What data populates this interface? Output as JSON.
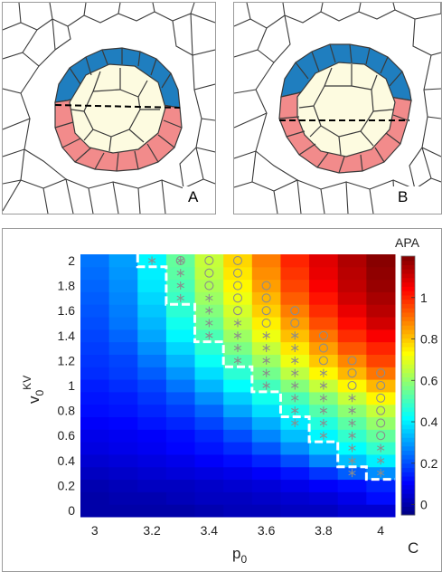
{
  "panels": {
    "a_label": "A",
    "b_label": "B",
    "c_label": "C"
  },
  "colors": {
    "top_cells": "#1f7ebf",
    "bottom_cells": "#f28b8b",
    "inner_cells": "#fdfbe0",
    "cell_edges": "#3a3a3a",
    "boundary_marker": "#ffffff",
    "marker_color": "#8c8c8c"
  },
  "chart_data": {
    "type": "heatmap",
    "title": "",
    "xlabel": "p0",
    "ylabel": "v0KV",
    "colorbar_label": "APA",
    "colormap": "jet",
    "x": [
      3.0,
      3.1,
      3.2,
      3.3,
      3.4,
      3.5,
      3.6,
      3.7,
      3.8,
      3.9,
      4.0
    ],
    "y": [
      0,
      0.1,
      0.2,
      0.3,
      0.4,
      0.5,
      0.6,
      0.7,
      0.8,
      0.9,
      1.0,
      1.1,
      1.2,
      1.3,
      1.4,
      1.5,
      1.6,
      1.7,
      1.8,
      1.9,
      2.0
    ],
    "xlim": [
      2.95,
      4.05
    ],
    "ylim": [
      -0.05,
      2.05
    ],
    "clim": [
      -0.05,
      1.2
    ],
    "xticks": [
      3,
      3.2,
      3.4,
      3.6,
      3.8,
      4
    ],
    "yticks": [
      0,
      0.2,
      0.4,
      0.6,
      0.8,
      1,
      1.2,
      1.4,
      1.6,
      1.8,
      2
    ],
    "colorbar_ticks": [
      0,
      0.2,
      0.4,
      0.6,
      0.8,
      1
    ],
    "values": [
      [
        0.0,
        0.0,
        0.0,
        0.0,
        0.01,
        0.02,
        0.02,
        0.03,
        0.03,
        0.05,
        0.05
      ],
      [
        0.0,
        0.01,
        0.01,
        0.02,
        0.03,
        0.03,
        0.04,
        0.05,
        0.06,
        0.08,
        0.12
      ],
      [
        0.01,
        0.02,
        0.03,
        0.03,
        0.04,
        0.05,
        0.06,
        0.08,
        0.1,
        0.12,
        0.15
      ],
      [
        0.03,
        0.04,
        0.05,
        0.06,
        0.07,
        0.08,
        0.1,
        0.13,
        0.17,
        0.22,
        0.28
      ],
      [
        0.05,
        0.06,
        0.07,
        0.08,
        0.1,
        0.12,
        0.15,
        0.2,
        0.27,
        0.34,
        0.4
      ],
      [
        0.07,
        0.08,
        0.09,
        0.11,
        0.13,
        0.16,
        0.21,
        0.28,
        0.35,
        0.42,
        0.48
      ],
      [
        0.08,
        0.09,
        0.1,
        0.12,
        0.15,
        0.2,
        0.27,
        0.34,
        0.41,
        0.48,
        0.54
      ],
      [
        0.1,
        0.11,
        0.13,
        0.15,
        0.19,
        0.25,
        0.32,
        0.39,
        0.46,
        0.53,
        0.6
      ],
      [
        0.12,
        0.13,
        0.15,
        0.18,
        0.23,
        0.31,
        0.38,
        0.45,
        0.52,
        0.59,
        0.66
      ],
      [
        0.13,
        0.14,
        0.17,
        0.21,
        0.28,
        0.36,
        0.44,
        0.51,
        0.58,
        0.66,
        0.74
      ],
      [
        0.14,
        0.16,
        0.19,
        0.25,
        0.33,
        0.42,
        0.5,
        0.58,
        0.66,
        0.74,
        0.82
      ],
      [
        0.16,
        0.18,
        0.22,
        0.29,
        0.38,
        0.47,
        0.56,
        0.65,
        0.74,
        0.82,
        0.9
      ],
      [
        0.17,
        0.19,
        0.25,
        0.33,
        0.43,
        0.52,
        0.61,
        0.71,
        0.8,
        0.88,
        0.96
      ],
      [
        0.18,
        0.21,
        0.28,
        0.37,
        0.47,
        0.57,
        0.66,
        0.76,
        0.85,
        0.94,
        1.0
      ],
      [
        0.19,
        0.23,
        0.31,
        0.41,
        0.51,
        0.61,
        0.71,
        0.81,
        0.9,
        0.99,
        1.05
      ],
      [
        0.2,
        0.25,
        0.33,
        0.44,
        0.55,
        0.65,
        0.75,
        0.85,
        0.95,
        1.03,
        1.1
      ],
      [
        0.21,
        0.26,
        0.35,
        0.47,
        0.58,
        0.68,
        0.79,
        0.89,
        0.99,
        1.07,
        1.13
      ],
      [
        0.22,
        0.27,
        0.37,
        0.49,
        0.61,
        0.71,
        0.82,
        0.93,
        1.02,
        1.1,
        1.15
      ],
      [
        0.23,
        0.28,
        0.39,
        0.51,
        0.63,
        0.74,
        0.85,
        0.96,
        1.05,
        1.12,
        1.17
      ],
      [
        0.24,
        0.29,
        0.4,
        0.53,
        0.65,
        0.76,
        0.87,
        0.98,
        1.07,
        1.13,
        1.18
      ],
      [
        0.25,
        0.3,
        0.41,
        0.54,
        0.66,
        0.78,
        0.89,
        1.0,
        1.08,
        1.14,
        1.19
      ]
    ],
    "boundary": [
      [
        3.15,
        2.05
      ],
      [
        3.15,
        1.95
      ],
      [
        3.25,
        1.95
      ],
      [
        3.25,
        1.65
      ],
      [
        3.35,
        1.65
      ],
      [
        3.35,
        1.35
      ],
      [
        3.45,
        1.35
      ],
      [
        3.45,
        1.15
      ],
      [
        3.55,
        1.15
      ],
      [
        3.55,
        0.95
      ],
      [
        3.65,
        0.95
      ],
      [
        3.65,
        0.75
      ],
      [
        3.75,
        0.75
      ],
      [
        3.75,
        0.55
      ],
      [
        3.85,
        0.55
      ],
      [
        3.85,
        0.35
      ],
      [
        3.95,
        0.35
      ],
      [
        3.95,
        0.25
      ],
      [
        4.05,
        0.25
      ]
    ],
    "markers_circle": [
      [
        3.3,
        2.0
      ],
      [
        3.4,
        2.0
      ],
      [
        3.4,
        1.9
      ],
      [
        3.4,
        1.8
      ],
      [
        3.5,
        2.0
      ],
      [
        3.5,
        1.9
      ],
      [
        3.5,
        1.8
      ],
      [
        3.5,
        1.7
      ],
      [
        3.5,
        1.6
      ],
      [
        3.6,
        1.8
      ],
      [
        3.6,
        1.7
      ],
      [
        3.6,
        1.6
      ],
      [
        3.6,
        1.5
      ],
      [
        3.7,
        1.6
      ],
      [
        3.7,
        1.5
      ],
      [
        3.8,
        1.4
      ],
      [
        3.8,
        1.3
      ],
      [
        3.8,
        1.2
      ],
      [
        3.9,
        1.2
      ],
      [
        3.9,
        1.1
      ],
      [
        3.9,
        1.0
      ],
      [
        4.0,
        1.1
      ],
      [
        4.0,
        1.0
      ],
      [
        4.0,
        0.9
      ],
      [
        4.0,
        0.8
      ],
      [
        4.0,
        0.7
      ],
      [
        4.0,
        0.6
      ]
    ],
    "markers_star": [
      [
        3.2,
        2.0
      ],
      [
        3.3,
        2.0
      ],
      [
        3.3,
        1.9
      ],
      [
        3.3,
        1.8
      ],
      [
        3.3,
        1.7
      ],
      [
        3.4,
        1.7
      ],
      [
        3.4,
        1.6
      ],
      [
        3.4,
        1.5
      ],
      [
        3.4,
        1.4
      ],
      [
        3.5,
        1.5
      ],
      [
        3.5,
        1.4
      ],
      [
        3.5,
        1.3
      ],
      [
        3.5,
        1.2
      ],
      [
        3.6,
        1.4
      ],
      [
        3.6,
        1.3
      ],
      [
        3.6,
        1.2
      ],
      [
        3.6,
        1.1
      ],
      [
        3.6,
        1.0
      ],
      [
        3.7,
        1.4
      ],
      [
        3.7,
        1.3
      ],
      [
        3.7,
        1.2
      ],
      [
        3.7,
        1.1
      ],
      [
        3.7,
        1.0
      ],
      [
        3.7,
        0.9
      ],
      [
        3.7,
        0.8
      ],
      [
        3.7,
        0.7
      ],
      [
        3.8,
        1.1
      ],
      [
        3.8,
        1.0
      ],
      [
        3.8,
        0.9
      ],
      [
        3.8,
        0.8
      ],
      [
        3.8,
        0.7
      ],
      [
        3.8,
        0.6
      ],
      [
        3.9,
        0.9
      ],
      [
        3.9,
        0.8
      ],
      [
        3.9,
        0.7
      ],
      [
        3.9,
        0.6
      ],
      [
        3.9,
        0.5
      ],
      [
        3.9,
        0.4
      ],
      [
        3.9,
        0.3
      ],
      [
        4.0,
        0.5
      ],
      [
        4.0,
        0.4
      ],
      [
        4.0,
        0.3
      ]
    ]
  }
}
